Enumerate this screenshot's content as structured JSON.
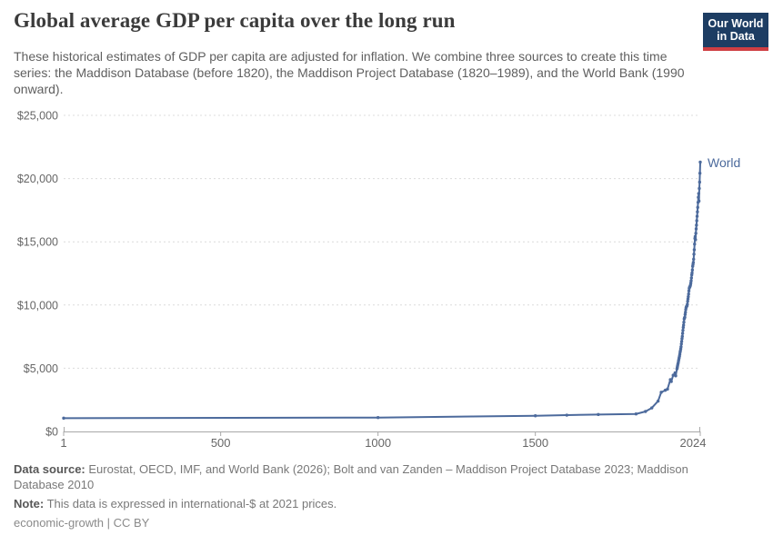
{
  "header": {
    "title": "Global average GDP per capita over the long run",
    "subtitle": "These historical estimates of GDP per capita are adjusted for inflation. We combine three sources to create this time series: the Maddison Database (before 1820), the Maddison Project Database (1820–1989), and the World Bank (1990 onward).",
    "logo": {
      "line1": "Our World",
      "line2": "in Data",
      "bg_color": "#1d3d63",
      "accent_color": "#cf3e43"
    }
  },
  "chart_data": {
    "type": "line",
    "title": "Global average GDP per capita over the long run",
    "xlabel": "",
    "ylabel": "",
    "unit": "international-$ at 2021 prices",
    "xlim": [
      1,
      2024
    ],
    "ylim": [
      0,
      25000
    ],
    "grid": "horizontal-dashed",
    "legend_position": "end-of-line-label",
    "x_ticks": [
      1,
      500,
      1000,
      1500,
      2024
    ],
    "x_tick_labels": [
      "1",
      "500",
      "1000",
      "1500",
      "2024"
    ],
    "y_ticks": [
      0,
      5000,
      10000,
      15000,
      20000,
      25000
    ],
    "y_tick_labels": [
      "$0",
      "$5,000",
      "$10,000",
      "$15,000",
      "$20,000",
      "$25,000"
    ],
    "series": [
      {
        "name": "World",
        "color": "#4c6a9c",
        "points": [
          [
            1,
            1050
          ],
          [
            1000,
            1100
          ],
          [
            1500,
            1240
          ],
          [
            1600,
            1290
          ],
          [
            1700,
            1340
          ],
          [
            1820,
            1385
          ],
          [
            1850,
            1580
          ],
          [
            1870,
            1860
          ],
          [
            1890,
            2400
          ],
          [
            1900,
            3100
          ],
          [
            1913,
            3260
          ],
          [
            1920,
            3350
          ],
          [
            1929,
            4100
          ],
          [
            1932,
            3950
          ],
          [
            1938,
            4450
          ],
          [
            1944,
            4640
          ],
          [
            1946,
            4400
          ],
          [
            1950,
            4950
          ],
          [
            1951,
            5080
          ],
          [
            1952,
            5200
          ],
          [
            1953,
            5330
          ],
          [
            1954,
            5430
          ],
          [
            1955,
            5580
          ],
          [
            1956,
            5710
          ],
          [
            1957,
            5830
          ],
          [
            1958,
            5950
          ],
          [
            1959,
            6100
          ],
          [
            1960,
            6270
          ],
          [
            1961,
            6390
          ],
          [
            1962,
            6540
          ],
          [
            1963,
            6700
          ],
          [
            1964,
            6920
          ],
          [
            1965,
            7120
          ],
          [
            1966,
            7340
          ],
          [
            1967,
            7520
          ],
          [
            1968,
            7760
          ],
          [
            1969,
            8000
          ],
          [
            1970,
            8230
          ],
          [
            1971,
            8410
          ],
          [
            1972,
            8640
          ],
          [
            1973,
            8900
          ],
          [
            1974,
            8980
          ],
          [
            1975,
            9030
          ],
          [
            1976,
            9250
          ],
          [
            1977,
            9430
          ],
          [
            1978,
            9640
          ],
          [
            1979,
            9790
          ],
          [
            1980,
            9860
          ],
          [
            1981,
            9910
          ],
          [
            1982,
            9940
          ],
          [
            1983,
            10060
          ],
          [
            1984,
            10290
          ],
          [
            1985,
            10480
          ],
          [
            1986,
            10660
          ],
          [
            1987,
            10870
          ],
          [
            1988,
            11120
          ],
          [
            1989,
            11320
          ],
          [
            1990,
            11400
          ],
          [
            1991,
            11440
          ],
          [
            1992,
            11500
          ],
          [
            1993,
            11590
          ],
          [
            1994,
            11740
          ],
          [
            1995,
            11920
          ],
          [
            1996,
            12140
          ],
          [
            1997,
            12380
          ],
          [
            1998,
            12540
          ],
          [
            1999,
            12770
          ],
          [
            2000,
            13070
          ],
          [
            2001,
            13220
          ],
          [
            2002,
            13370
          ],
          [
            2003,
            13620
          ],
          [
            2004,
            14020
          ],
          [
            2005,
            14370
          ],
          [
            2006,
            14820
          ],
          [
            2007,
            15270
          ],
          [
            2008,
            15420
          ],
          [
            2009,
            15170
          ],
          [
            2010,
            15670
          ],
          [
            2011,
            16020
          ],
          [
            2012,
            16320
          ],
          [
            2013,
            16670
          ],
          [
            2014,
            17020
          ],
          [
            2015,
            17370
          ],
          [
            2016,
            17720
          ],
          [
            2017,
            18120
          ],
          [
            2018,
            18520
          ],
          [
            2019,
            18820
          ],
          [
            2020,
            18220
          ],
          [
            2021,
            19220
          ],
          [
            2022,
            19720
          ],
          [
            2023,
            20420
          ],
          [
            2024,
            21300
          ]
        ]
      }
    ]
  },
  "footer": {
    "data_source_label": "Data source:",
    "data_source_text": " Eurostat, OECD, IMF, and World Bank (2026); Bolt and van Zanden – Maddison Project Database 2023; Maddison Database 2010",
    "note_label": "Note:",
    "note_text": " This data is expressed in international-$ at 2021 prices.",
    "license": "economic-growth | CC BY"
  },
  "colors": {
    "grid": "#dcdcdc",
    "axis": "#a8a8a8",
    "tick_label": "#666666"
  }
}
